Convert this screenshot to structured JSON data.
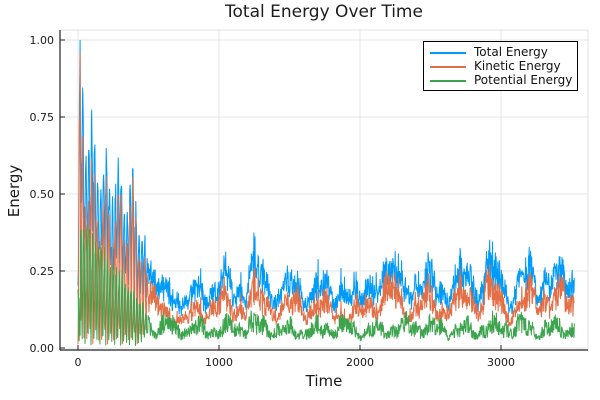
{
  "title": "Total Energy Over Time",
  "axes": {
    "xlabel": "Time",
    "ylabel": "Energy"
  },
  "legend": {
    "entries": [
      {
        "label": "Total Energy",
        "color": "#009af9"
      },
      {
        "label": "Kinetic Energy",
        "color": "#e36f47"
      },
      {
        "label": "Potential Energy",
        "color": "#3da44e"
      }
    ]
  },
  "chart_data": {
    "type": "line",
    "title": "Total Energy Over Time",
    "xlabel": "Time",
    "ylabel": "Energy",
    "xlim": [
      -130,
      3740
    ],
    "ylim": [
      -0.01,
      1.03
    ],
    "x_data_range": [
      0,
      3520
    ],
    "grid": true,
    "legend_position": "top-right",
    "xticks": {
      "values": [
        0,
        1000,
        2000,
        3000
      ],
      "labels": [
        "0",
        "1000",
        "2000",
        "3000"
      ]
    },
    "yticks": {
      "values": [
        0,
        0.25,
        0.5,
        0.75,
        1
      ],
      "labels": [
        "0.00",
        "0.25",
        "0.50",
        "0.75",
        "1.00"
      ]
    },
    "colors": {
      "grid": "#e4e4e4",
      "axis": "#222222",
      "frame_light": "#e0e0e0",
      "text": "#1a1a1a"
    },
    "series": [
      {
        "name": "Total Energy",
        "color": "#009af9",
        "derived": "kinetic_plus_potential",
        "global_peak": {
          "t": 15,
          "value": 1.0
        },
        "steady_top_envelope": [
          [
            430,
            0.5
          ],
          [
            470,
            0.4
          ],
          [
            520,
            0.32
          ],
          [
            600,
            0.27
          ],
          [
            680,
            0.2
          ],
          [
            760,
            0.16
          ],
          [
            820,
            0.22
          ],
          [
            900,
            0.28
          ],
          [
            1000,
            0.3
          ],
          [
            1100,
            0.3
          ],
          [
            1200,
            0.36
          ],
          [
            1280,
            0.32
          ],
          [
            1400,
            0.24
          ],
          [
            1480,
            0.26
          ],
          [
            1600,
            0.3
          ],
          [
            1700,
            0.3
          ],
          [
            1800,
            0.26
          ],
          [
            1900,
            0.22
          ],
          [
            2000,
            0.24
          ],
          [
            2100,
            0.3
          ],
          [
            2200,
            0.35
          ],
          [
            2300,
            0.32
          ],
          [
            2400,
            0.3
          ],
          [
            2500,
            0.32
          ],
          [
            2600,
            0.28
          ],
          [
            2700,
            0.3
          ],
          [
            2800,
            0.32
          ],
          [
            2920,
            0.38
          ],
          [
            3000,
            0.3
          ],
          [
            3100,
            0.28
          ],
          [
            3200,
            0.32
          ],
          [
            3280,
            0.35
          ],
          [
            3400,
            0.3
          ],
          [
            3520,
            0.3
          ]
        ],
        "steady_band": [
          0.07,
          0.35
        ]
      },
      {
        "name": "Kinetic Energy",
        "color": "#e36f47",
        "osc_period_early": 21,
        "early_peak_envelope": [
          [
            0,
            0.3
          ],
          [
            12,
            0.93
          ],
          [
            45,
            0.8
          ],
          [
            80,
            0.68
          ],
          [
            130,
            0.58
          ],
          [
            220,
            0.56
          ],
          [
            320,
            0.56
          ],
          [
            390,
            0.58
          ],
          [
            430,
            0.5
          ],
          [
            480,
            0.38
          ],
          [
            540,
            0.28
          ]
        ],
        "steady_band": [
          0.05,
          0.3
        ]
      },
      {
        "name": "Potential Energy",
        "color": "#3da44e",
        "osc_period_early": 21,
        "early_peak_envelope": [
          [
            0,
            0.22
          ],
          [
            25,
            0.46
          ],
          [
            90,
            0.4
          ],
          [
            160,
            0.35
          ],
          [
            250,
            0.29
          ],
          [
            330,
            0.24
          ],
          [
            420,
            0.18
          ],
          [
            540,
            0.13
          ]
        ],
        "steady_top_envelope": [
          [
            430,
            0.2
          ],
          [
            520,
            0.16
          ],
          [
            650,
            0.13
          ],
          [
            800,
            0.12
          ],
          [
            1000,
            0.13
          ],
          [
            1200,
            0.15
          ],
          [
            1400,
            0.12
          ],
          [
            1700,
            0.13
          ],
          [
            2000,
            0.12
          ],
          [
            2300,
            0.14
          ],
          [
            2600,
            0.13
          ],
          [
            2900,
            0.13
          ],
          [
            3200,
            0.14
          ],
          [
            3520,
            0.13
          ]
        ],
        "steady_band": [
          0.01,
          0.15
        ]
      }
    ]
  }
}
